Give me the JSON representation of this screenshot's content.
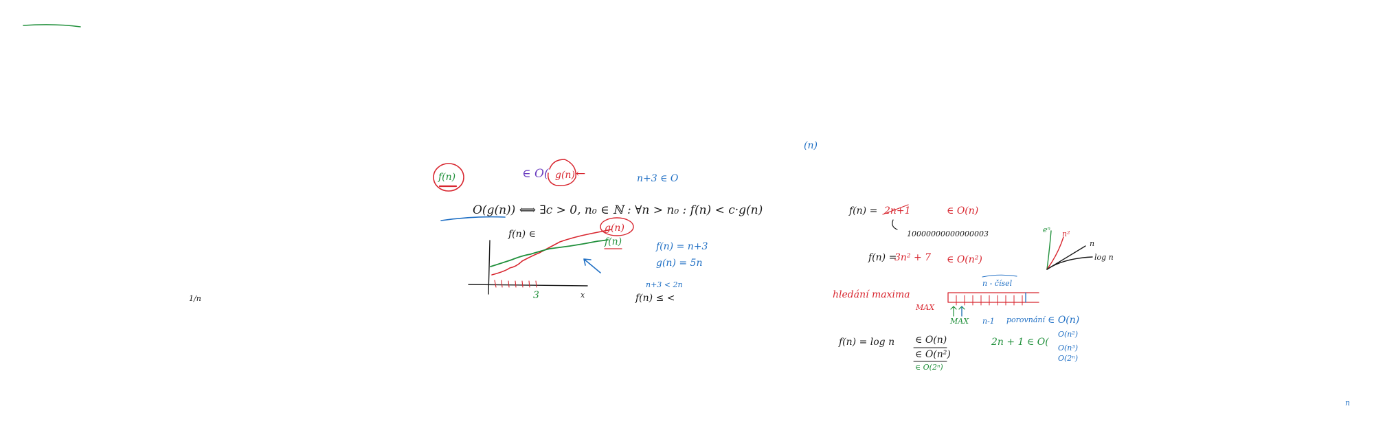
{
  "colors": {
    "black": "#1a1a1a",
    "red": "#d8262f",
    "green": "#1f8f3a",
    "blue": "#1f6fc4",
    "purple": "#6a3cbf"
  },
  "marks": {
    "topleft_dash": "",
    "n_in_parens": "(n)",
    "far_left": "1/n",
    "bottom_right": "n"
  },
  "left": {
    "fn_circled": "f(n)",
    "element_of_O": "∈ O(",
    "gn_circled": "g(n)",
    "arrow": "←",
    "n3_in_O": "n+3 ∈ O",
    "definition": "O(g(n)) ⟺ ∃c > 0, n₀ ∈ ℕ : ∀n > n₀ : f(n) < c·g(n)",
    "graph_fn_label": "f(n) ∈",
    "graph_gn_label": "g(n)",
    "graph_fn_green": "f(n)",
    "graph_tick_3": "3",
    "graph_x": "x",
    "ex_fn": "f(n) = n+3",
    "ex_gn": "g(n) = 5n",
    "ex_ineq": "n+3 < 2n",
    "ex_f_less": "f(n) ≤ <"
  },
  "right": {
    "fn1_lhs": "f(n) =",
    "fn1_rhs": "2n+1",
    "fn1_class": "∈ O(n)",
    "big_number": "10000000000000003",
    "fn2_lhs": "f(n) =",
    "fn2_rhs": "3n² + 7",
    "fn2_class": "∈ O(n²)",
    "growth_e": "eⁿ",
    "growth_n2": "n²",
    "growth_n": "n",
    "growth_log": "log n",
    "search_label": "hledání maxima",
    "max_label": "MAX",
    "array_label": "n - čísel",
    "max_small": "MAX",
    "n_compare": "n-1",
    "porovnani": "porovnání",
    "class_On": "∈ O(n)",
    "class_On2": "O(n²)",
    "class_On3": "O(n³)",
    "class_O2n": "O(2ⁿ)",
    "fn3_lhs": "f(n) = log n",
    "fn3_c1": "∈ O(n)",
    "fn3_c2": "∈ O(n²)",
    "fn3_c3": "∈ O(2ⁿ)",
    "green_2n": "2n + 1 ∈ O("
  }
}
